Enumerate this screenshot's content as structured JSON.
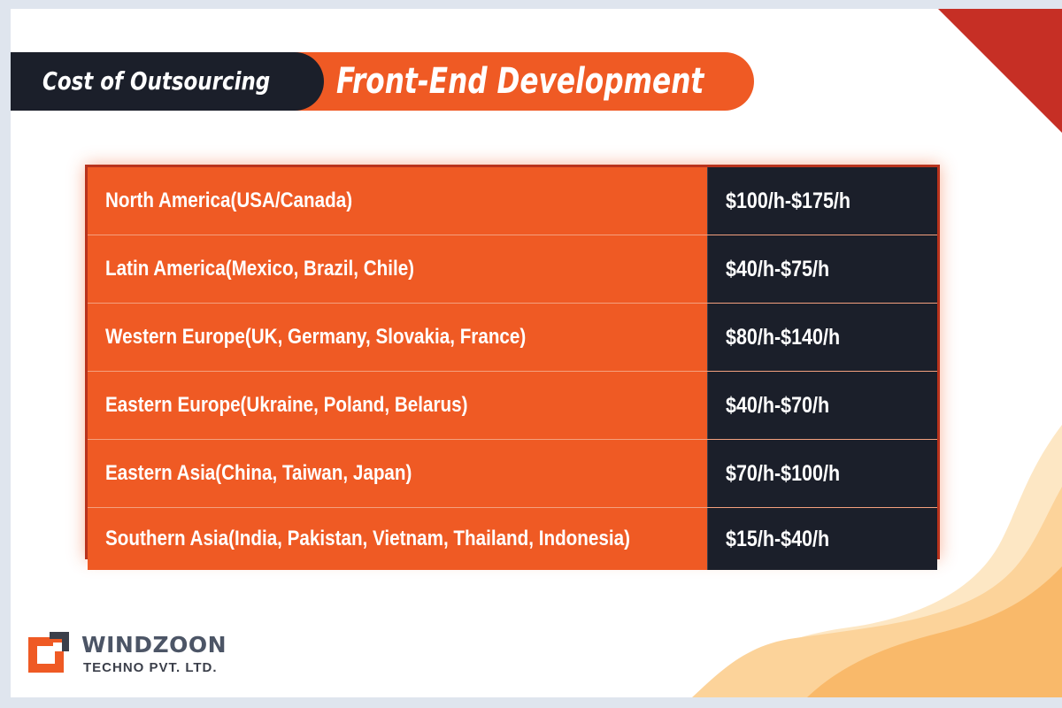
{
  "title": {
    "part1": "Cost of Outsourcing",
    "part2": "Front-End Development"
  },
  "rates": [
    {
      "region": "North America(USA/Canada)",
      "cost": "$100/h-$175/h"
    },
    {
      "region": "Latin America(Mexico, Brazil, Chile)",
      "cost": "$40/h-$75/h"
    },
    {
      "region": "Western Europe(UK, Germany, Slovakia, France)",
      "cost": "$80/h-$140/h"
    },
    {
      "region": "Eastern Europe(Ukraine, Poland, Belarus)",
      "cost": "$40/h-$70/h"
    },
    {
      "region": "Eastern Asia(China, Taiwan, Japan)",
      "cost": "$70/h-$100/h"
    },
    {
      "region": "Southern Asia(India, Pakistan, Vietnam, Thailand, Indonesia)",
      "cost": "$15/h-$40/h"
    }
  ],
  "logo": {
    "name": "WINDZOON",
    "subtitle": "TECHNO PVT. LTD."
  },
  "colors": {
    "accent": "#ef5a24",
    "dark": "#1b1f2a",
    "corner": "#c62f25"
  }
}
